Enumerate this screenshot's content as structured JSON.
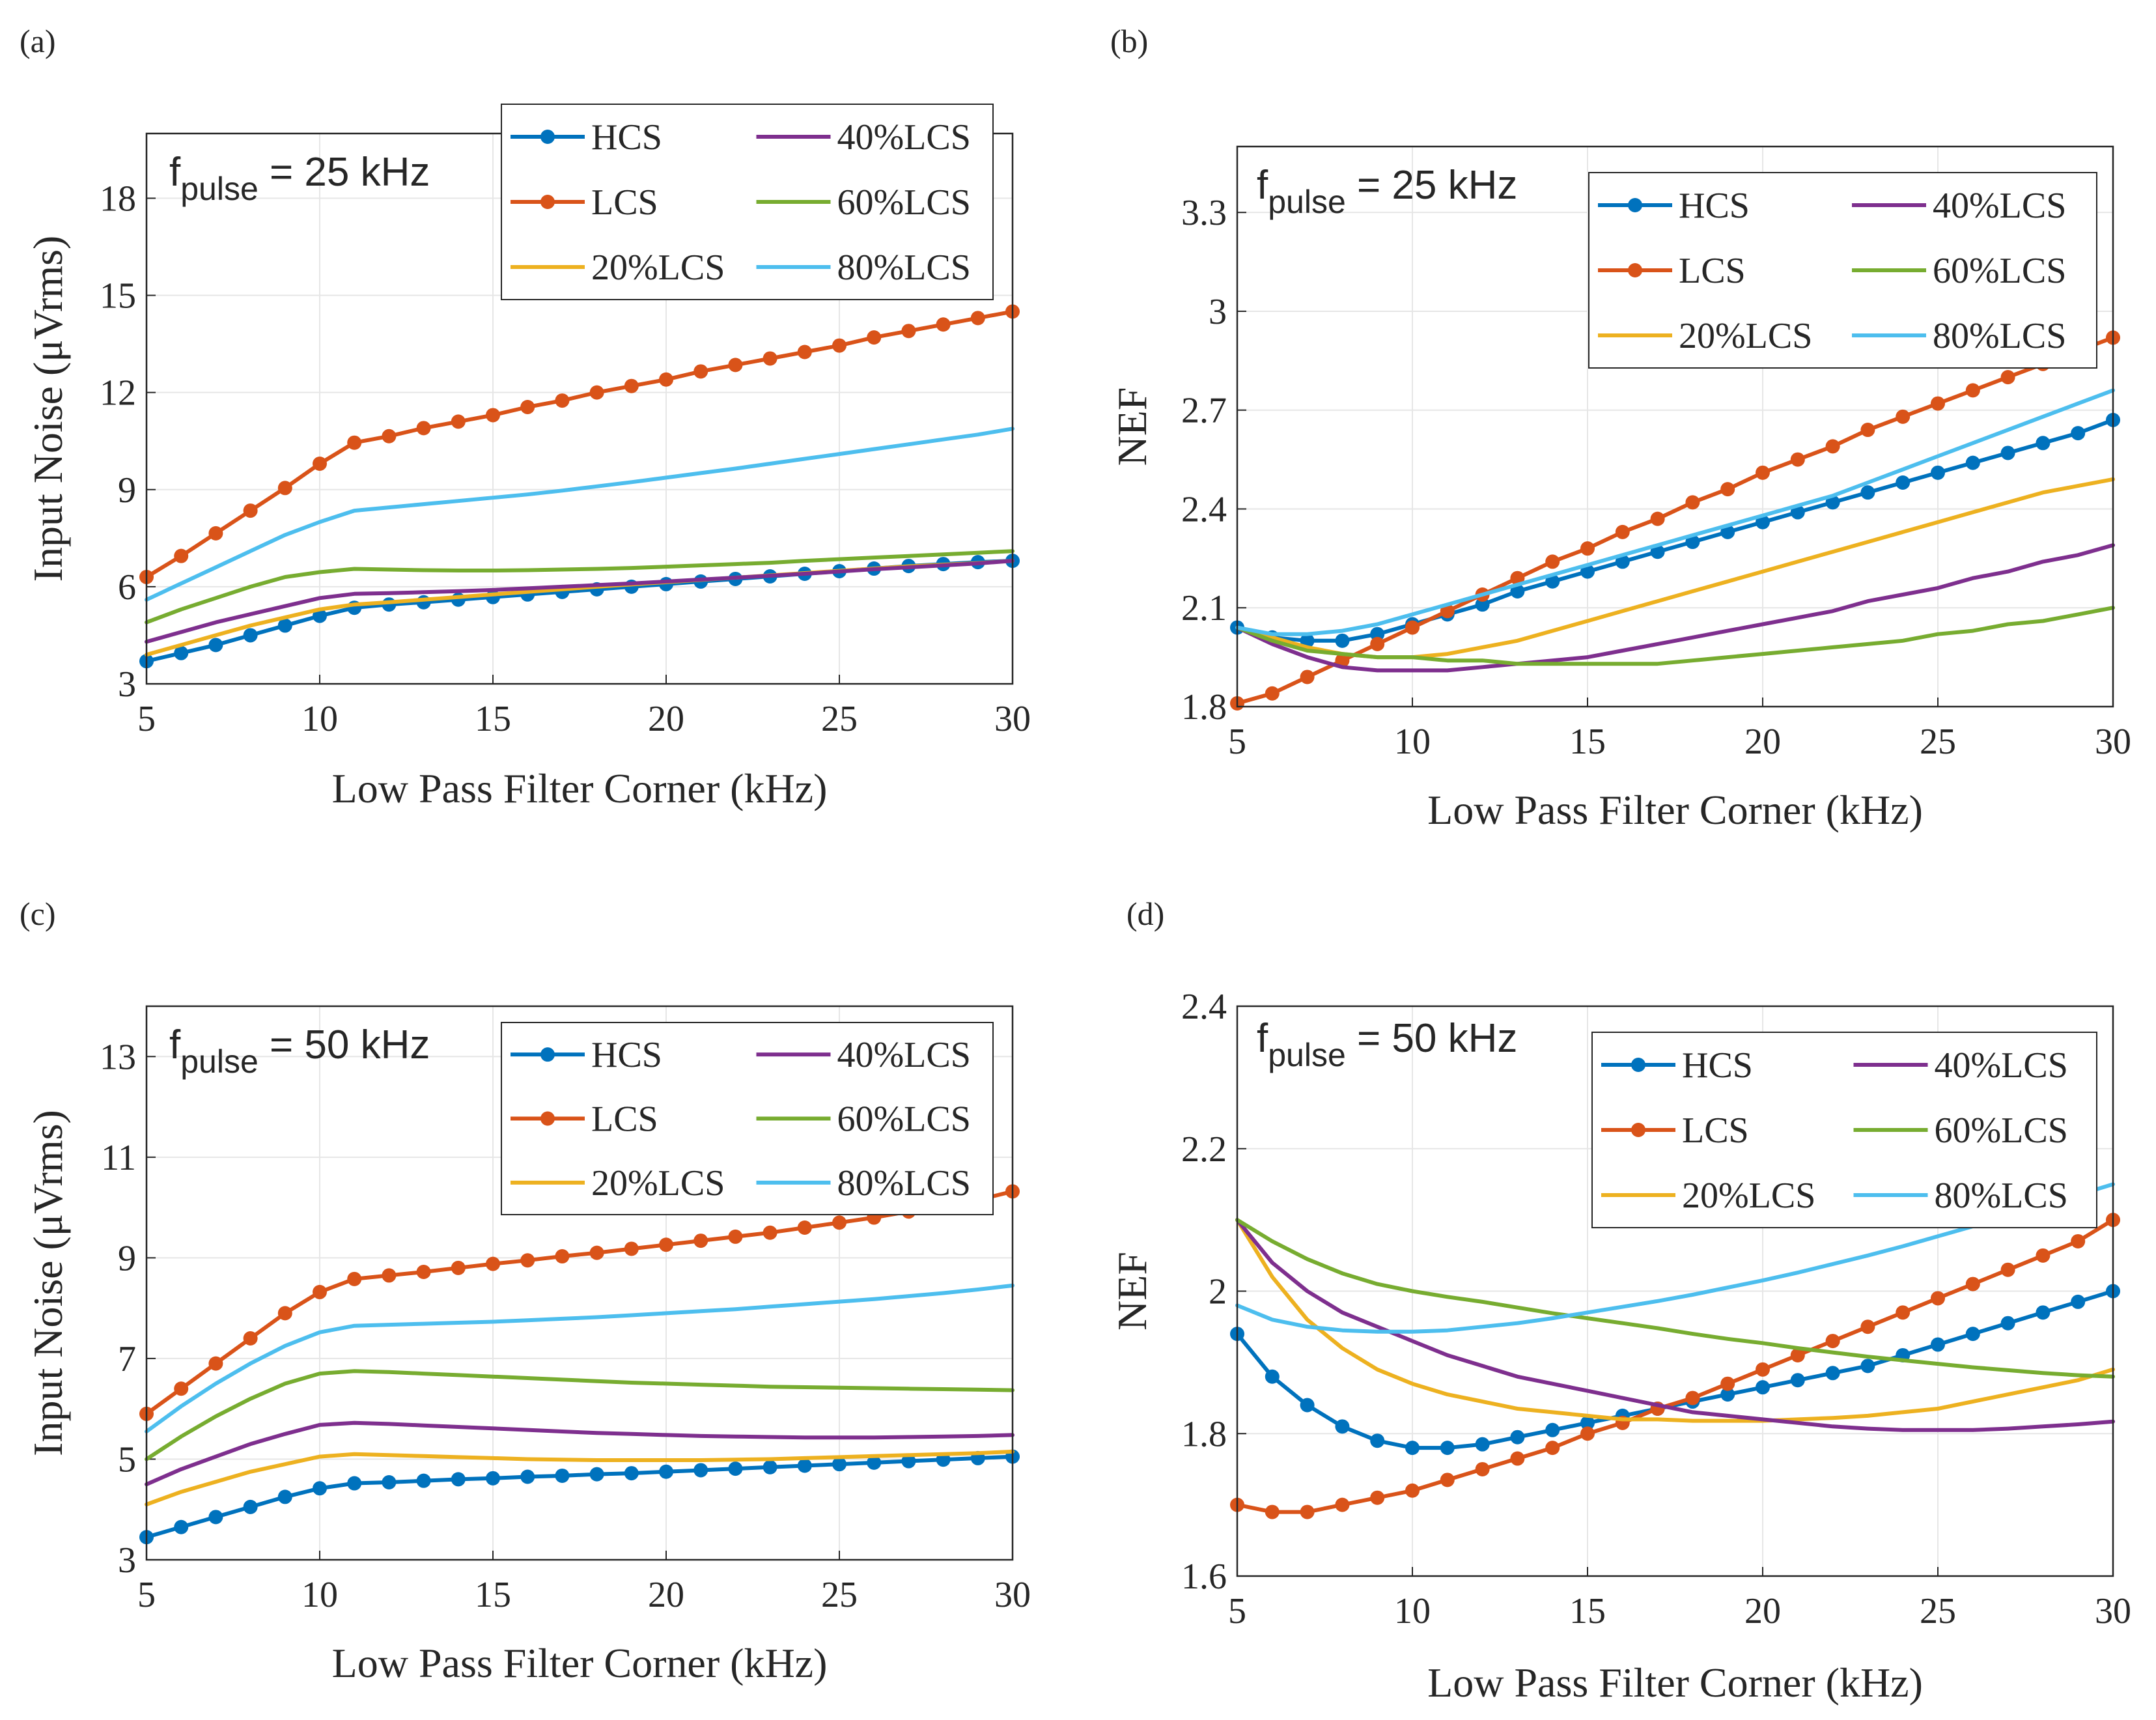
{
  "figure": {
    "panel_labels": [
      "(a)",
      "(b)",
      "(c)",
      "(d)"
    ]
  },
  "chart_data": [
    {
      "type": "line",
      "panel": "(a)",
      "annotation": {
        "main": "f",
        "sub": "pulse",
        "rest": " = 25 kHz"
      },
      "xlabel": "Low Pass Filter Corner (kHz)",
      "ylabel": "Input Noise (μVrms)",
      "xlim": [
        5,
        30
      ],
      "ylim": [
        3,
        20
      ],
      "xticks": [
        5,
        10,
        15,
        20,
        25,
        30
      ],
      "yticks": [
        3,
        6,
        9,
        12,
        15,
        18
      ],
      "x": [
        5,
        6,
        7,
        8,
        9,
        10,
        11,
        12,
        13,
        14,
        15,
        16,
        17,
        18,
        19,
        20,
        21,
        22,
        23,
        24,
        25,
        26,
        27,
        28,
        29,
        30
      ],
      "series": [
        {
          "name": "HCS",
          "color": "#0072BD",
          "marker": true,
          "values": [
            3.7,
            3.95,
            4.2,
            4.5,
            4.8,
            5.1,
            5.35,
            5.45,
            5.52,
            5.6,
            5.68,
            5.76,
            5.84,
            5.92,
            6.0,
            6.08,
            6.16,
            6.24,
            6.32,
            6.4,
            6.48,
            6.56,
            6.64,
            6.7,
            6.76,
            6.8
          ]
        },
        {
          "name": "LCS",
          "color": "#D95319",
          "marker": true,
          "values": [
            6.3,
            6.95,
            7.65,
            8.35,
            9.05,
            9.8,
            10.45,
            10.65,
            10.9,
            11.1,
            11.3,
            11.55,
            11.75,
            12.0,
            12.2,
            12.4,
            12.65,
            12.85,
            13.05,
            13.25,
            13.45,
            13.7,
            13.9,
            14.1,
            14.3,
            14.5
          ]
        },
        {
          "name": "20%LCS",
          "color": "#EDB120",
          "marker": false,
          "values": [
            3.9,
            4.2,
            4.5,
            4.8,
            5.05,
            5.3,
            5.45,
            5.52,
            5.6,
            5.68,
            5.76,
            5.84,
            5.92,
            6.0,
            6.07,
            6.14,
            6.21,
            6.28,
            6.35,
            6.42,
            6.49,
            6.56,
            6.63,
            6.68,
            6.73,
            6.8
          ]
        },
        {
          "name": "40%LCS",
          "color": "#7E2F8E",
          "marker": false,
          "values": [
            4.3,
            4.6,
            4.9,
            5.15,
            5.4,
            5.65,
            5.78,
            5.8,
            5.83,
            5.86,
            5.9,
            5.95,
            6.0,
            6.05,
            6.1,
            6.16,
            6.22,
            6.28,
            6.34,
            6.4,
            6.47,
            6.54,
            6.6,
            6.66,
            6.72,
            6.8
          ]
        },
        {
          "name": "60%LCS",
          "color": "#77AC30",
          "marker": false,
          "values": [
            4.9,
            5.3,
            5.65,
            6.0,
            6.3,
            6.45,
            6.55,
            6.53,
            6.51,
            6.5,
            6.5,
            6.51,
            6.53,
            6.55,
            6.58,
            6.62,
            6.66,
            6.7,
            6.74,
            6.8,
            6.85,
            6.9,
            6.95,
            7.0,
            7.05,
            7.1
          ]
        },
        {
          "name": "80%LCS",
          "color": "#4DBEEE",
          "marker": false,
          "values": [
            5.6,
            6.1,
            6.6,
            7.1,
            7.6,
            8.0,
            8.35,
            8.45,
            8.55,
            8.65,
            8.75,
            8.85,
            8.97,
            9.1,
            9.23,
            9.37,
            9.51,
            9.65,
            9.8,
            9.95,
            10.1,
            10.25,
            10.4,
            10.55,
            10.7,
            10.88
          ]
        }
      ]
    },
    {
      "type": "line",
      "panel": "(b)",
      "annotation": {
        "main": "f",
        "sub": "pulse",
        "rest": " = 25 kHz"
      },
      "xlabel": "Low Pass Filter Corner (kHz)",
      "ylabel": "NEF",
      "xlim": [
        5,
        30
      ],
      "ylim": [
        1.8,
        3.5
      ],
      "xticks": [
        5,
        10,
        15,
        20,
        25,
        30
      ],
      "yticks": [
        1.8,
        2.1,
        2.4,
        2.7,
        3,
        3.3
      ],
      "x": [
        5,
        6,
        7,
        8,
        9,
        10,
        11,
        12,
        13,
        14,
        15,
        16,
        17,
        18,
        19,
        20,
        21,
        22,
        23,
        24,
        25,
        26,
        27,
        28,
        29,
        30
      ],
      "series": [
        {
          "name": "HCS",
          "color": "#0072BD",
          "marker": true,
          "values": [
            2.04,
            2.01,
            2.0,
            2.0,
            2.02,
            2.05,
            2.08,
            2.11,
            2.15,
            2.18,
            2.21,
            2.24,
            2.27,
            2.3,
            2.33,
            2.36,
            2.39,
            2.42,
            2.45,
            2.48,
            2.51,
            2.54,
            2.57,
            2.6,
            2.63,
            2.67
          ]
        },
        {
          "name": "LCS",
          "color": "#D95319",
          "marker": true,
          "values": [
            1.81,
            1.84,
            1.89,
            1.94,
            1.99,
            2.04,
            2.09,
            2.14,
            2.19,
            2.24,
            2.28,
            2.33,
            2.37,
            2.42,
            2.46,
            2.51,
            2.55,
            2.59,
            2.64,
            2.68,
            2.72,
            2.76,
            2.8,
            2.84,
            2.88,
            2.92
          ]
        },
        {
          "name": "20%LCS",
          "color": "#EDB120",
          "marker": false,
          "values": [
            2.04,
            2.01,
            1.98,
            1.96,
            1.95,
            1.95,
            1.96,
            1.98,
            2.0,
            2.03,
            2.06,
            2.09,
            2.12,
            2.15,
            2.18,
            2.21,
            2.24,
            2.27,
            2.3,
            2.33,
            2.36,
            2.39,
            2.42,
            2.45,
            2.47,
            2.49
          ]
        },
        {
          "name": "40%LCS",
          "color": "#7E2F8E",
          "marker": false,
          "values": [
            2.04,
            1.99,
            1.95,
            1.92,
            1.91,
            1.91,
            1.91,
            1.92,
            1.93,
            1.94,
            1.95,
            1.97,
            1.99,
            2.01,
            2.03,
            2.05,
            2.07,
            2.09,
            2.12,
            2.14,
            2.16,
            2.19,
            2.21,
            2.24,
            2.26,
            2.29
          ]
        },
        {
          "name": "60%LCS",
          "color": "#77AC30",
          "marker": false,
          "values": [
            2.04,
            2.0,
            1.97,
            1.96,
            1.95,
            1.95,
            1.94,
            1.94,
            1.93,
            1.93,
            1.93,
            1.93,
            1.93,
            1.94,
            1.95,
            1.96,
            1.97,
            1.98,
            1.99,
            2.0,
            2.02,
            2.03,
            2.05,
            2.06,
            2.08,
            2.1
          ]
        },
        {
          "name": "80%LCS",
          "color": "#4DBEEE",
          "marker": false,
          "values": [
            2.04,
            2.02,
            2.02,
            2.03,
            2.05,
            2.08,
            2.11,
            2.14,
            2.17,
            2.2,
            2.23,
            2.26,
            2.29,
            2.32,
            2.35,
            2.38,
            2.41,
            2.44,
            2.48,
            2.52,
            2.56,
            2.6,
            2.64,
            2.68,
            2.72,
            2.76
          ]
        }
      ]
    },
    {
      "type": "line",
      "panel": "(c)",
      "annotation": {
        "main": "f",
        "sub": "pulse",
        "rest": " = 50 kHz"
      },
      "xlabel": "Low Pass Filter Corner (kHz)",
      "ylabel": "Input Noise (μVrms)",
      "xlim": [
        5,
        30
      ],
      "ylim": [
        3,
        14
      ],
      "xticks": [
        5,
        10,
        15,
        20,
        25,
        30
      ],
      "yticks": [
        3,
        5,
        7,
        9,
        11,
        13
      ],
      "x": [
        5,
        6,
        7,
        8,
        9,
        10,
        11,
        12,
        13,
        14,
        15,
        16,
        17,
        18,
        19,
        20,
        21,
        22,
        23,
        24,
        25,
        26,
        27,
        28,
        29,
        30
      ],
      "series": [
        {
          "name": "HCS",
          "color": "#0072BD",
          "marker": true,
          "values": [
            3.45,
            3.65,
            3.85,
            4.05,
            4.25,
            4.42,
            4.52,
            4.54,
            4.57,
            4.6,
            4.62,
            4.65,
            4.67,
            4.7,
            4.72,
            4.75,
            4.78,
            4.81,
            4.84,
            4.87,
            4.9,
            4.93,
            4.96,
            4.99,
            5.02,
            5.05
          ]
        },
        {
          "name": "LCS",
          "color": "#D95319",
          "marker": true,
          "values": [
            5.9,
            6.4,
            6.9,
            7.4,
            7.9,
            8.32,
            8.58,
            8.65,
            8.72,
            8.8,
            8.88,
            8.95,
            9.03,
            9.1,
            9.18,
            9.26,
            9.34,
            9.42,
            9.5,
            9.6,
            9.7,
            9.8,
            9.92,
            10.02,
            10.15,
            10.32
          ]
        },
        {
          "name": "20%LCS",
          "color": "#EDB120",
          "marker": false,
          "values": [
            4.1,
            4.35,
            4.55,
            4.75,
            4.9,
            5.05,
            5.1,
            5.08,
            5.06,
            5.04,
            5.02,
            5.0,
            4.99,
            4.98,
            4.98,
            4.98,
            4.98,
            4.99,
            5.0,
            5.02,
            5.04,
            5.06,
            5.08,
            5.1,
            5.12,
            5.15
          ]
        },
        {
          "name": "40%LCS",
          "color": "#7E2F8E",
          "marker": false,
          "values": [
            4.5,
            4.8,
            5.05,
            5.3,
            5.5,
            5.68,
            5.72,
            5.7,
            5.67,
            5.64,
            5.61,
            5.58,
            5.55,
            5.52,
            5.5,
            5.48,
            5.46,
            5.45,
            5.44,
            5.43,
            5.43,
            5.43,
            5.44,
            5.45,
            5.46,
            5.48
          ]
        },
        {
          "name": "60%LCS",
          "color": "#77AC30",
          "marker": false,
          "values": [
            5.0,
            5.45,
            5.85,
            6.2,
            6.5,
            6.7,
            6.75,
            6.73,
            6.7,
            6.67,
            6.64,
            6.61,
            6.58,
            6.55,
            6.52,
            6.5,
            6.48,
            6.46,
            6.44,
            6.43,
            6.42,
            6.41,
            6.4,
            6.39,
            6.38,
            6.37
          ]
        },
        {
          "name": "80%LCS",
          "color": "#4DBEEE",
          "marker": false,
          "values": [
            5.55,
            6.05,
            6.5,
            6.9,
            7.25,
            7.52,
            7.65,
            7.67,
            7.69,
            7.71,
            7.73,
            7.76,
            7.79,
            7.82,
            7.86,
            7.9,
            7.94,
            7.98,
            8.03,
            8.08,
            8.13,
            8.18,
            8.24,
            8.3,
            8.37,
            8.45
          ]
        }
      ]
    },
    {
      "type": "line",
      "panel": "(d)",
      "annotation": {
        "main": "f",
        "sub": "pulse",
        "rest": " = 50 kHz"
      },
      "xlabel": "Low Pass Filter Corner (kHz)",
      "ylabel": "NEF",
      "xlim": [
        5,
        30
      ],
      "ylim": [
        1.6,
        2.4
      ],
      "xticks": [
        5,
        10,
        15,
        20,
        25,
        30
      ],
      "yticks": [
        1.6,
        1.8,
        2,
        2.2,
        2.4
      ],
      "x": [
        5,
        6,
        7,
        8,
        9,
        10,
        11,
        12,
        13,
        14,
        15,
        16,
        17,
        18,
        19,
        20,
        21,
        22,
        23,
        24,
        25,
        26,
        27,
        28,
        29,
        30
      ],
      "series": [
        {
          "name": "HCS",
          "color": "#0072BD",
          "marker": true,
          "values": [
            1.94,
            1.88,
            1.84,
            1.81,
            1.79,
            1.78,
            1.78,
            1.785,
            1.795,
            1.805,
            1.815,
            1.825,
            1.835,
            1.845,
            1.855,
            1.865,
            1.875,
            1.885,
            1.895,
            1.91,
            1.925,
            1.94,
            1.955,
            1.97,
            1.985,
            2.0
          ]
        },
        {
          "name": "LCS",
          "color": "#D95319",
          "marker": true,
          "values": [
            1.7,
            1.69,
            1.69,
            1.7,
            1.71,
            1.72,
            1.735,
            1.75,
            1.765,
            1.78,
            1.8,
            1.815,
            1.835,
            1.85,
            1.87,
            1.89,
            1.91,
            1.93,
            1.95,
            1.97,
            1.99,
            2.01,
            2.03,
            2.05,
            2.07,
            2.1
          ]
        },
        {
          "name": "20%LCS",
          "color": "#EDB120",
          "marker": false,
          "values": [
            2.1,
            2.02,
            1.96,
            1.92,
            1.89,
            1.87,
            1.855,
            1.845,
            1.835,
            1.83,
            1.825,
            1.82,
            1.82,
            1.818,
            1.818,
            1.818,
            1.82,
            1.822,
            1.825,
            1.83,
            1.835,
            1.845,
            1.855,
            1.865,
            1.875,
            1.89
          ]
        },
        {
          "name": "40%LCS",
          "color": "#7E2F8E",
          "marker": false,
          "values": [
            2.1,
            2.04,
            2.0,
            1.97,
            1.95,
            1.93,
            1.91,
            1.895,
            1.88,
            1.87,
            1.86,
            1.85,
            1.84,
            1.83,
            1.825,
            1.82,
            1.815,
            1.81,
            1.807,
            1.805,
            1.805,
            1.805,
            1.807,
            1.81,
            1.813,
            1.817
          ]
        },
        {
          "name": "60%LCS",
          "color": "#77AC30",
          "marker": false,
          "values": [
            2.1,
            2.07,
            2.045,
            2.025,
            2.01,
            2.0,
            1.992,
            1.985,
            1.977,
            1.969,
            1.962,
            1.955,
            1.948,
            1.94,
            1.933,
            1.927,
            1.92,
            1.914,
            1.908,
            1.903,
            1.898,
            1.893,
            1.889,
            1.885,
            1.882,
            1.88
          ]
        },
        {
          "name": "80%LCS",
          "color": "#4DBEEE",
          "marker": false,
          "values": [
            1.98,
            1.96,
            1.95,
            1.945,
            1.943,
            1.943,
            1.945,
            1.95,
            1.955,
            1.962,
            1.97,
            1.978,
            1.986,
            1.995,
            2.005,
            2.015,
            2.026,
            2.038,
            2.05,
            2.063,
            2.077,
            2.091,
            2.105,
            2.12,
            2.135,
            2.15
          ]
        }
      ]
    }
  ]
}
